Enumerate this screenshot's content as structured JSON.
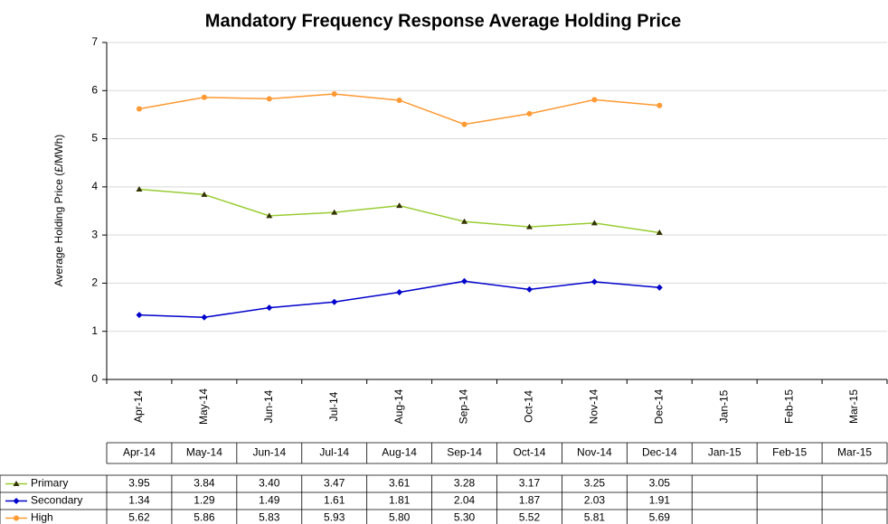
{
  "chart_data": {
    "type": "line",
    "title": "Mandatory Frequency Response Average Holding Price",
    "y_label": "Average Holding Price (£/MWh)",
    "categories": [
      "Apr-14",
      "May-14",
      "Jun-14",
      "Jul-14",
      "Aug-14",
      "Sep-14",
      "Oct-14",
      "Nov-14",
      "Dec-14",
      "Jan-15",
      "Feb-15",
      "Mar-15"
    ],
    "series": [
      {
        "name": "Primary",
        "color": "#99cc33",
        "marker_color": "#333300",
        "marker": "triangle",
        "values": [
          3.95,
          3.84,
          3.4,
          3.47,
          3.61,
          3.28,
          3.17,
          3.25,
          3.05,
          null,
          null,
          null
        ],
        "value_labels": [
          "3.95",
          "3.84",
          "3.40",
          "3.47",
          "3.61",
          "3.28",
          "3.17",
          "3.25",
          "3.05",
          null,
          null,
          null
        ]
      },
      {
        "name": "Secondary",
        "color": "#0000cc",
        "marker_color": "#0000cc",
        "marker": "diamond",
        "values": [
          1.34,
          1.29,
          1.49,
          1.61,
          1.81,
          2.04,
          1.87,
          2.03,
          1.91,
          null,
          null,
          null
        ],
        "value_labels": [
          "1.34",
          "1.29",
          "1.49",
          "1.61",
          "1.81",
          "2.04",
          "1.87",
          "2.03",
          "1.91",
          null,
          null,
          null
        ]
      },
      {
        "name": "High",
        "color": "#ff9933",
        "marker_color": "#ff9933",
        "marker": "circle",
        "values": [
          5.62,
          5.86,
          5.83,
          5.93,
          5.8,
          5.3,
          5.52,
          5.81,
          5.69,
          null,
          null,
          null
        ],
        "value_labels": [
          "5.62",
          "5.86",
          "5.83",
          "5.93",
          "5.80",
          "5.30",
          "5.52",
          "5.81",
          "5.69",
          null,
          null,
          null
        ]
      }
    ],
    "ylim": [
      0,
      7
    ],
    "yticks": [
      0,
      1,
      2,
      3,
      4,
      5,
      6,
      7
    ],
    "grid": true
  }
}
